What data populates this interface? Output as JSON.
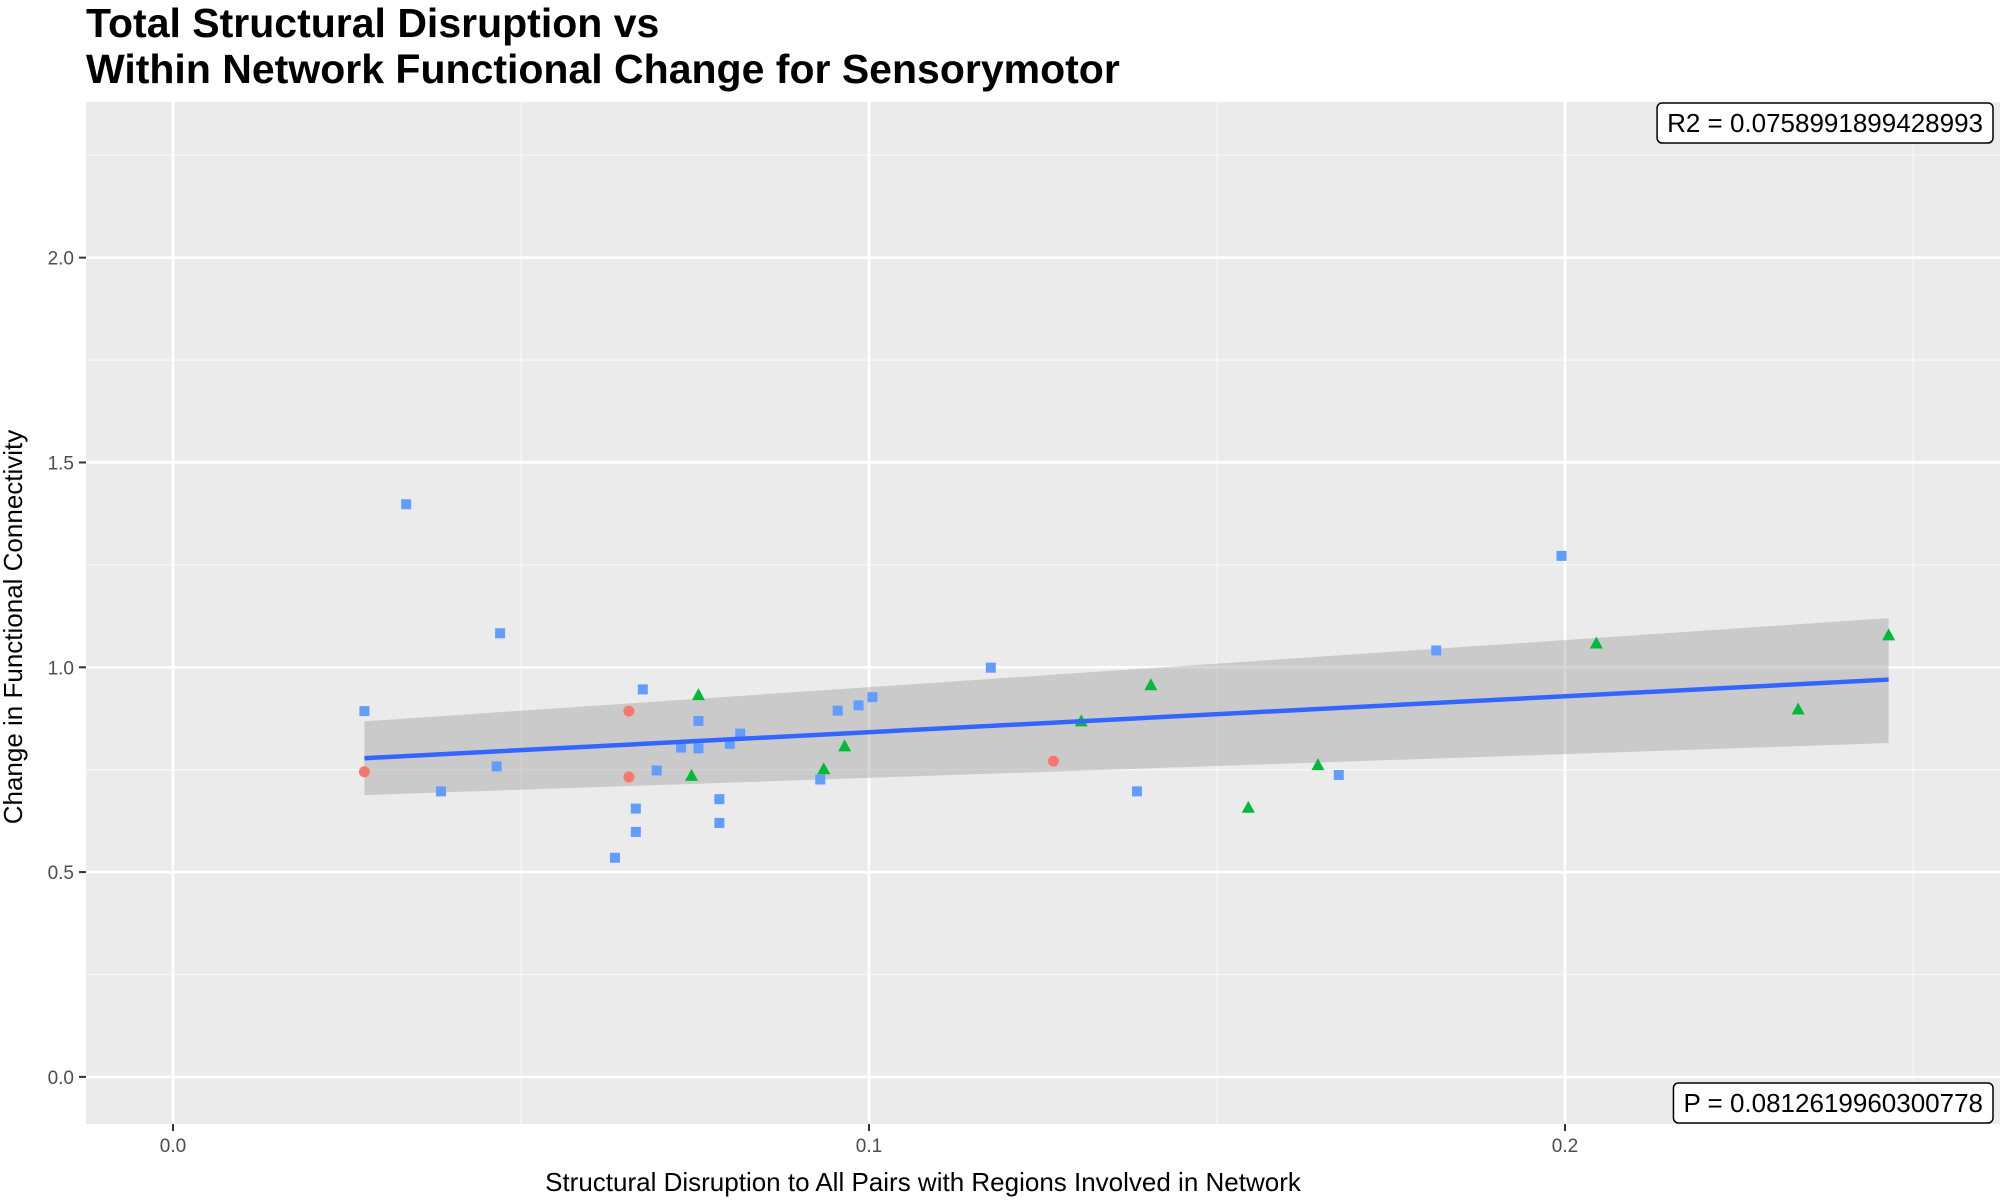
{
  "chart_data": {
    "type": "scatter",
    "title": [
      "Total Structural Disruption vs",
      "Within Network Functional Change for Sensorymotor"
    ],
    "xlabel": "Structural Disruption to All Pairs with Regions Involved in Network",
    "ylabel": "Change in Functional Connectivity",
    "xlim": [
      -0.0125,
      0.2625
    ],
    "ylim": [
      -0.115,
      2.38
    ],
    "x_ticks": [
      0.0,
      0.1,
      0.2
    ],
    "x_tick_labels": [
      "0.0",
      "0.1",
      "0.2"
    ],
    "y_ticks": [
      0.0,
      0.5,
      1.0,
      1.5,
      2.0
    ],
    "y_tick_labels": [
      "0.0",
      "0.5",
      "1.0",
      "1.5",
      "2.0"
    ],
    "grid": true,
    "legend": "none",
    "annotations": {
      "r2": "R2 =  0.0758991899428993",
      "p": "P =  0.0812619960300778"
    },
    "series": [
      {
        "shape": "circle",
        "color": "#F8766D",
        "points": [
          [
            0.0275,
            0.745
          ],
          [
            0.0655,
            0.893
          ],
          [
            0.0655,
            0.732
          ],
          [
            0.1265,
            0.771
          ]
        ]
      },
      {
        "shape": "triangle",
        "color": "#00BA38",
        "points": [
          [
            0.0755,
            0.932
          ],
          [
            0.0745,
            0.735
          ],
          [
            0.0935,
            0.751
          ],
          [
            0.0965,
            0.807
          ],
          [
            0.1305,
            0.868
          ],
          [
            0.1405,
            0.956
          ],
          [
            0.1545,
            0.657
          ],
          [
            0.1645,
            0.761
          ],
          [
            0.2045,
            1.058
          ],
          [
            0.2335,
            0.897
          ],
          [
            0.2465,
            1.078
          ]
        ]
      },
      {
        "shape": "square",
        "color": "#619CFF",
        "points": [
          [
            0.0275,
            0.893
          ],
          [
            0.0335,
            1.398
          ],
          [
            0.0385,
            0.697
          ],
          [
            0.0465,
            0.758
          ],
          [
            0.047,
            1.083
          ],
          [
            0.0635,
            0.535
          ],
          [
            0.0665,
            0.655
          ],
          [
            0.0665,
            0.598
          ],
          [
            0.0675,
            0.946
          ],
          [
            0.0695,
            0.748
          ],
          [
            0.073,
            0.804
          ],
          [
            0.0755,
            0.869
          ],
          [
            0.0755,
            0.802
          ],
          [
            0.0785,
            0.678
          ],
          [
            0.0785,
            0.62
          ],
          [
            0.08,
            0.813
          ],
          [
            0.0815,
            0.838
          ],
          [
            0.093,
            0.726
          ],
          [
            0.0955,
            0.894
          ],
          [
            0.0985,
            0.907
          ],
          [
            0.1005,
            0.927
          ],
          [
            0.1175,
            0.999
          ],
          [
            0.1385,
            0.697
          ],
          [
            0.1675,
            0.737
          ],
          [
            0.1815,
            1.041
          ],
          [
            0.1995,
            1.272
          ]
        ]
      }
    ],
    "fit": {
      "color": "#3366FF",
      "x": [
        0.0275,
        0.2465
      ],
      "y": [
        0.778,
        0.97
      ],
      "ci_upper": [
        0.868,
        1.12
      ],
      "ci_lower": [
        0.688,
        0.815
      ],
      "band_color": "#C4C4C4"
    }
  }
}
